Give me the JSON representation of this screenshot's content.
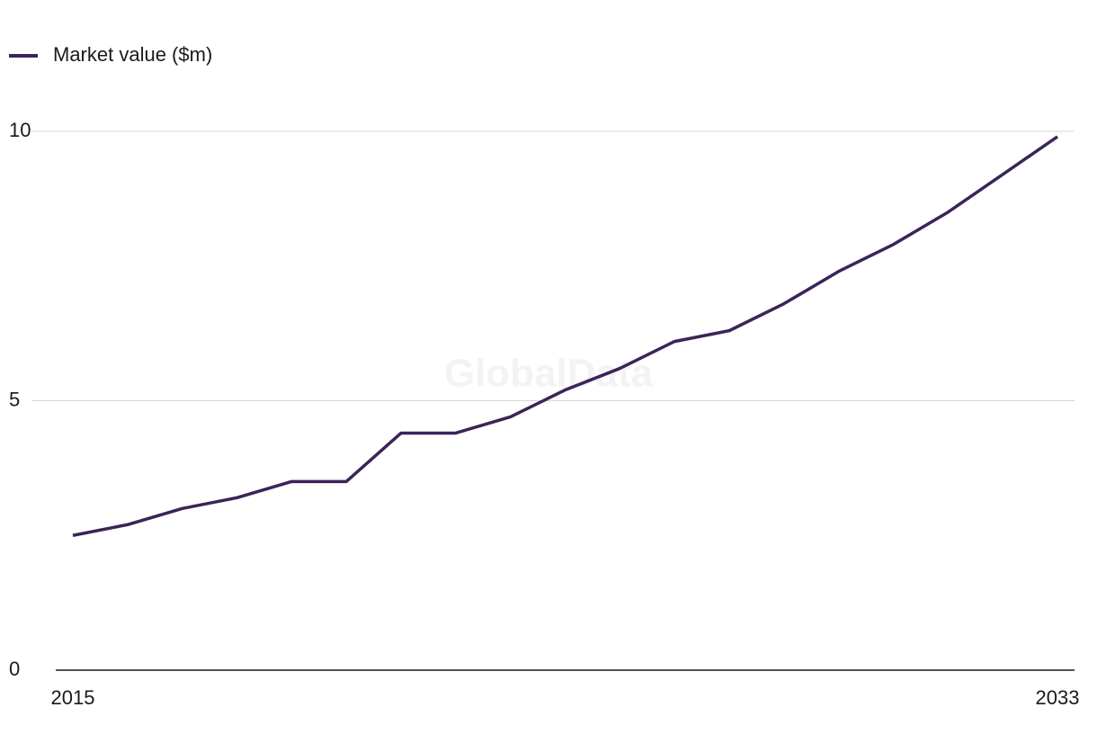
{
  "chart_data": {
    "type": "line",
    "watermark": "GlobalData",
    "x": [
      2015,
      2016,
      2017,
      2018,
      2019,
      2020,
      2021,
      2022,
      2023,
      2024,
      2025,
      2026,
      2027,
      2028,
      2029,
      2030,
      2031,
      2032,
      2033
    ],
    "series": [
      {
        "name": "Market value ($m)",
        "color": "#3a2458",
        "values": [
          2.5,
          2.7,
          3.0,
          3.2,
          3.5,
          3.5,
          4.4,
          4.4,
          4.7,
          5.2,
          5.6,
          6.1,
          6.3,
          6.8,
          7.4,
          7.9,
          8.5,
          9.2,
          9.9
        ]
      }
    ],
    "xlim": [
      2015,
      2033
    ],
    "xticks": [
      2015,
      2033
    ],
    "ylim": [
      0,
      10
    ],
    "yticks": [
      0,
      5,
      10
    ],
    "grid": true,
    "legend": "top-left"
  }
}
